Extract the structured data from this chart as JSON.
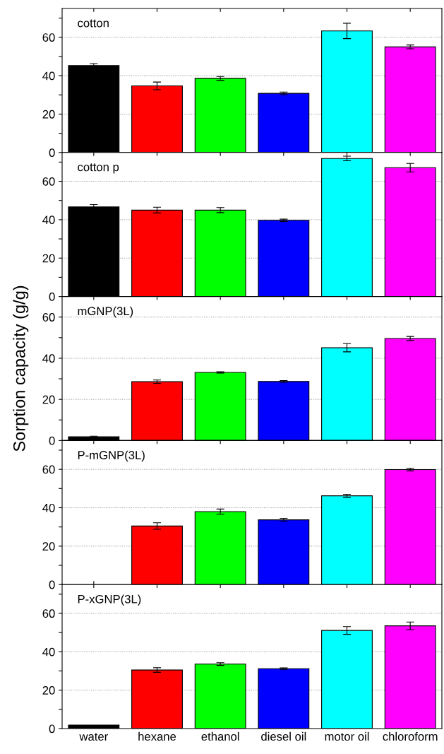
{
  "chart_data": [
    {
      "type": "bar",
      "title": "cotton",
      "categories": [
        null,
        null,
        null,
        null,
        null,
        null
      ],
      "values": [
        45.3,
        34.7,
        38.6,
        30.8,
        63.3,
        55.0
      ],
      "errors": [
        1,
        2,
        1,
        0.7,
        4,
        1
      ],
      "colors": [
        "#000000",
        "#ff0000",
        "#00ff00",
        "#0000ff",
        "#00ffff",
        "#ff00ff"
      ],
      "ylim": [
        0,
        75
      ],
      "yticks": [
        0,
        {
          "value": 10,
          "label": null
        },
        20,
        {
          "value": 30,
          "label": null
        },
        40,
        {
          "value": 50,
          "label": null
        },
        60,
        {
          "value": 70,
          "label": null
        }
      ],
      "grid": "y",
      "tick_labels": "y"
    },
    {
      "type": "bar",
      "title": "cotton p",
      "categories": [
        null,
        null,
        null,
        null,
        null,
        null
      ],
      "values": [
        46.7,
        45.0,
        45.0,
        39.7,
        71.9,
        67.1
      ],
      "errors": [
        1.2,
        1.5,
        1.3,
        0.6,
        1.2,
        2.2
      ],
      "colors": [
        "#000000",
        "#ff0000",
        "#00ff00",
        "#0000ff",
        "#00ffff",
        "#ff00ff"
      ],
      "ylim": [
        0,
        75
      ],
      "yticks": [
        0,
        {
          "value": 10,
          "label": null
        },
        20,
        {
          "value": 30,
          "label": null
        },
        40,
        {
          "value": 50,
          "label": null
        },
        60,
        {
          "value": 70,
          "label": null
        }
      ],
      "grid": "y",
      "tick_labels": "y"
    },
    {
      "type": "bar",
      "title": "mGNP(3L)",
      "ylabel": "Sorption capacity (g/g)",
      "categories": [
        null,
        null,
        null,
        null,
        null,
        null
      ],
      "values": [
        1.8,
        28.6,
        33.1,
        28.7,
        45.1,
        49.6
      ],
      "errors": [
        0.3,
        0.8,
        0.3,
        0.4,
        2,
        1
      ],
      "colors": [
        "#000000",
        "#ff0000",
        "#00ff00",
        "#0000ff",
        "#00ffff",
        "#ff00ff"
      ],
      "ylim": [
        0,
        70
      ],
      "yticks": [
        0,
        {
          "value": 10,
          "label": null
        },
        20,
        {
          "value": 30,
          "label": null
        },
        40,
        {
          "value": 50,
          "label": null
        },
        60
      ],
      "grid": "y",
      "tick_labels": "y"
    },
    {
      "type": "bar",
      "title": "P-mGNP(3L)",
      "categories": [
        null,
        null,
        null,
        null,
        null,
        null
      ],
      "values": [
        null,
        30.5,
        38.0,
        33.7,
        46.2,
        59.9
      ],
      "errors": [
        null,
        1.7,
        1.3,
        0.8,
        0.8,
        0.7
      ],
      "colors": [
        "#000000",
        "#ff0000",
        "#00ff00",
        "#0000ff",
        "#00ffff",
        "#ff00ff"
      ],
      "ylim": [
        0,
        75
      ],
      "yticks": [
        0,
        {
          "value": 10,
          "label": null
        },
        20,
        {
          "value": 30,
          "label": null
        },
        40,
        {
          "value": 50,
          "label": null
        },
        60,
        {
          "value": 70,
          "label": null
        }
      ],
      "grid": "y",
      "tick_labels": "y"
    },
    {
      "type": "bar",
      "title": "P-xGNP(3L)",
      "categories": [
        "water",
        "hexane",
        "ethanol",
        "diesel oil",
        "motor oil",
        "chloroform"
      ],
      "values": [
        1.8,
        30.5,
        33.6,
        31.2,
        51.1,
        53.5
      ],
      "errors": [
        null,
        1.2,
        0.7,
        0.4,
        2,
        2
      ],
      "colors": [
        "#000000",
        "#ff0000",
        "#00ff00",
        "#0000ff",
        "#00ffff",
        "#ff00ff"
      ],
      "ylim": [
        0,
        75
      ],
      "yticks": [
        0,
        {
          "value": 10,
          "label": null
        },
        20,
        {
          "value": 30,
          "label": null
        },
        40,
        {
          "value": 50,
          "label": null
        },
        60,
        {
          "value": 70,
          "label": null
        }
      ],
      "grid": "y"
    }
  ]
}
